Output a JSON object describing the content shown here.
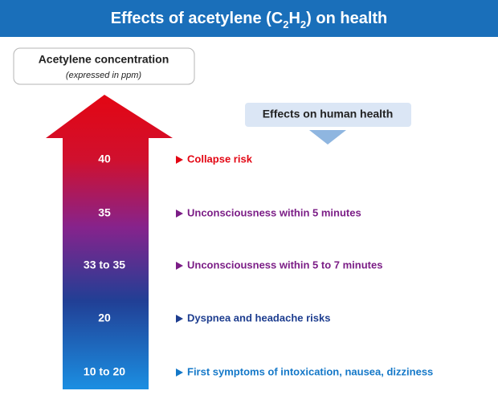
{
  "header": {
    "title": [
      "Effects of acetylene (C",
      "2",
      "H",
      "2",
      ") on health"
    ]
  },
  "concentration_label": {
    "title": "Acetylene concentration",
    "subtitle": "(expressed in ppm)"
  },
  "effects_label": "Effects on human health",
  "levels": [
    {
      "concentration": "40",
      "effect": "Collapse risk",
      "color": "#e30613"
    },
    {
      "concentration": "35",
      "effect": "Unconsciousness within 5 minutes",
      "color": "#7b1d86"
    },
    {
      "concentration": "33 to 35",
      "effect": "Unconsciousness within 5 to 7 minutes",
      "color": "#7b1d86"
    },
    {
      "concentration": "20",
      "effect": "Dyspnea and headache risks",
      "color": "#1d3d8f"
    },
    {
      "concentration": "10 to 20",
      "effect": "First symptoms of intoxication, nausea, dizziness",
      "color": "#1478c8"
    }
  ]
}
